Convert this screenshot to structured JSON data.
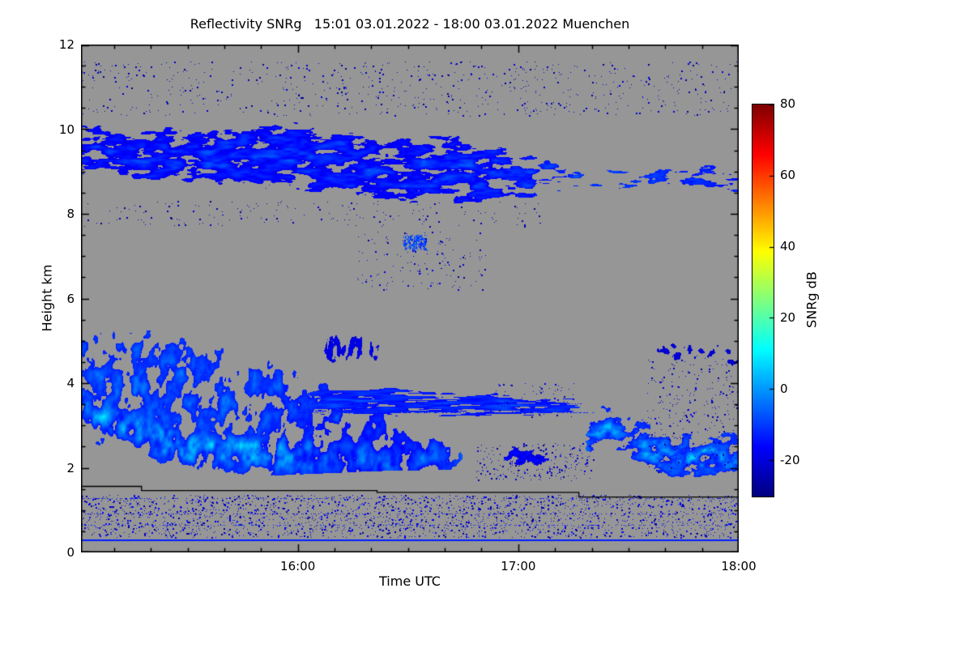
{
  "chart_data": {
    "type": "heatmap",
    "title": "Reflectivity SNRg   15:01 03.01.2022 - 18:00 03.01.2022 Muenchen",
    "xlabel": "Time UTC",
    "ylabel": "Height km",
    "ylim": [
      0,
      12
    ],
    "y_ticks": [
      "0",
      "2",
      "4",
      "6",
      "8",
      "10",
      "12"
    ],
    "x_axis": {
      "start": "15:01",
      "end": "18:00",
      "total_minutes": 179,
      "minor_step_min": 10,
      "first_minor_min": 9
    },
    "x_ticks": [
      {
        "label": "16:00",
        "frac": 0.32961
      },
      {
        "label": "17:00",
        "frac": 0.6648
      },
      {
        "label": "18:00",
        "frac": 1.0
      }
    ],
    "colorbar": {
      "label": "SNRg dB",
      "range": [
        -30,
        80
      ],
      "ticks": [
        80,
        60,
        40,
        20,
        0,
        -20
      ]
    },
    "colors": {
      "no_signal": "#969696",
      "frame": "#000000",
      "page": "#ffffff"
    },
    "layers": [
      {
        "name": "cirrus-layer-8-10km",
        "t0": 0,
        "t1": 1,
        "fl": 0,
        "fr": 0,
        "top": [
          [
            0,
            10.35
          ],
          [
            0.08,
            10.1
          ],
          [
            0.16,
            10.3
          ],
          [
            0.24,
            10.2
          ],
          [
            0.3,
            10.45
          ],
          [
            0.38,
            10.3
          ],
          [
            0.44,
            10.1
          ],
          [
            0.5,
            10.05
          ],
          [
            0.56,
            10.15
          ],
          [
            0.62,
            9.9
          ],
          [
            0.68,
            9.75
          ],
          [
            0.74,
            9.4
          ],
          [
            0.8,
            9.3
          ],
          [
            0.86,
            9.2
          ],
          [
            0.92,
            9.35
          ],
          [
            1,
            9.4
          ]
        ],
        "bottom": [
          [
            0,
            8.75
          ],
          [
            0.1,
            8.55
          ],
          [
            0.2,
            8.5
          ],
          [
            0.3,
            8.4
          ],
          [
            0.4,
            8.15
          ],
          [
            0.5,
            8.05
          ],
          [
            0.6,
            7.95
          ],
          [
            0.7,
            8.1
          ],
          [
            0.78,
            8.3
          ],
          [
            0.86,
            8.45
          ],
          [
            1,
            8.35
          ]
        ],
        "base": -27,
        "amp": 21,
        "cut": 0.33,
        "sx": 20,
        "sy": 6,
        "slant": 0.05,
        "cover_pts": [
          [
            0,
            0.95
          ],
          [
            0.5,
            1
          ],
          [
            0.62,
            0.85
          ],
          [
            0.7,
            0.7
          ],
          [
            0.78,
            0.5
          ],
          [
            0.85,
            0.55
          ],
          [
            0.93,
            0.65
          ],
          [
            1,
            0.7
          ]
        ]
      },
      {
        "name": "main-precipitating-cloud",
        "t0": 0,
        "t1": 0.62,
        "fl": 0,
        "fr": 0.06,
        "top": [
          [
            0,
            6.0
          ],
          [
            0.12,
            5.95
          ],
          [
            0.18,
            5.7
          ],
          [
            0.25,
            5.3
          ],
          [
            0.3,
            5.0
          ],
          [
            0.35,
            4.5
          ],
          [
            0.41,
            4.2
          ],
          [
            0.46,
            3.6
          ],
          [
            0.5,
            3.0
          ],
          [
            0.55,
            2.8
          ],
          [
            0.62,
            2.6
          ]
        ],
        "bottom": [
          [
            0,
            1.85
          ],
          [
            0.15,
            1.75
          ],
          [
            0.3,
            1.85
          ],
          [
            0.45,
            1.95
          ],
          [
            0.62,
            2.0
          ]
        ],
        "core": [
          [
            0,
            3.5
          ],
          [
            0.07,
            3.0
          ],
          [
            0.15,
            2.5
          ],
          [
            0.3,
            2.3
          ],
          [
            0.45,
            2.2
          ],
          [
            0.62,
            2.3
          ]
        ],
        "core_w": 0.55,
        "base": -26,
        "amp": 36,
        "cut": 0.27,
        "sx": 11,
        "sy": 17,
        "slant": 0.12,
        "cover_pts": [
          [
            0,
            1
          ],
          [
            0.4,
            1
          ],
          [
            0.5,
            0.85
          ],
          [
            0.56,
            0.65
          ],
          [
            0.62,
            0.45
          ]
        ],
        "amp_pts": [
          [
            0,
            1
          ],
          [
            0.25,
            1
          ],
          [
            0.4,
            0.8
          ],
          [
            0.62,
            0.6
          ]
        ]
      },
      {
        "name": "elevated-striated-band-3-4km",
        "t0": 0.3,
        "t1": 0.78,
        "fl": 0.07,
        "fr": 0.04,
        "top": [
          [
            0.3,
            4.05
          ],
          [
            0.5,
            4.0
          ],
          [
            0.78,
            3.7
          ]
        ],
        "bottom": [
          [
            0.3,
            3.15
          ],
          [
            0.6,
            3.1
          ],
          [
            0.78,
            3.2
          ]
        ],
        "base": -23,
        "amp": 17,
        "cut": 0.36,
        "sx": 34,
        "sy": 2.5,
        "slant": 0.01
      },
      {
        "name": "evening-cloud-17:20-18:00",
        "t0": 0.755,
        "t1": 1.0,
        "fl": 0.02,
        "fr": 0,
        "top": [
          [
            0.755,
            2.9
          ],
          [
            0.79,
            3.85
          ],
          [
            0.83,
            3.8
          ],
          [
            0.88,
            3.3
          ],
          [
            0.93,
            3.0
          ],
          [
            1,
            3.05
          ]
        ],
        "bottom": [
          [
            0.755,
            2.4
          ],
          [
            0.79,
            2.1
          ],
          [
            0.84,
            1.9
          ],
          [
            0.9,
            1.75
          ],
          [
            1,
            1.85
          ]
        ],
        "core": [
          [
            0.755,
            2.7
          ],
          [
            0.8,
            3.0
          ],
          [
            0.85,
            2.5
          ],
          [
            0.9,
            2.2
          ],
          [
            1,
            2.3
          ]
        ],
        "core_w": 0.5,
        "base": -26,
        "amp": 33,
        "cut": 0.3,
        "sx": 12,
        "sy": 10,
        "slant": 0.1
      },
      {
        "name": "weak-low-blobs-near-17:05",
        "t0": 0.615,
        "t1": 0.73,
        "fl": 0.03,
        "fr": 0.03,
        "top": [
          [
            0.615,
            2.6
          ],
          [
            0.66,
            2.7
          ],
          [
            0.73,
            2.5
          ]
        ],
        "bottom": [
          [
            0.615,
            1.95
          ],
          [
            0.73,
            1.95
          ]
        ],
        "base": -26,
        "amp": 12,
        "cut": 0.46,
        "sx": 9,
        "sy": 7,
        "slant": 0.05
      },
      {
        "name": "detached-virga-16:05-16:25",
        "t0": 0.355,
        "t1": 0.47,
        "fl": 0.02,
        "fr": 0.02,
        "top": [
          [
            0.355,
            5.2
          ],
          [
            0.4,
            5.35
          ],
          [
            0.47,
            5.1
          ]
        ],
        "bottom": [
          [
            0.355,
            4.4
          ],
          [
            0.42,
            4.3
          ],
          [
            0.47,
            4.5
          ]
        ],
        "base": -26,
        "amp": 10,
        "cut": 0.48,
        "sx": 5,
        "sy": 14,
        "slant": 0.2
      },
      {
        "name": "right-mid-level-debris",
        "t0": 0.86,
        "t1": 1.0,
        "fl": 0.02,
        "fr": 0,
        "top": [
          [
            0.86,
            5.0
          ],
          [
            0.93,
            5.2
          ],
          [
            1,
            4.9
          ]
        ],
        "bottom": [
          [
            0.86,
            4.4
          ],
          [
            1,
            4.3
          ]
        ],
        "base": -27,
        "amp": 8,
        "cut": 0.55,
        "sx": 7,
        "sy": 7,
        "slant": 0.05
      }
    ],
    "specks": [
      {
        "t0": 0,
        "t1": 1,
        "h0": 10.3,
        "h1": 11.6,
        "density": 0.012,
        "vmin": -28,
        "vmax": -20
      },
      {
        "t0": 0,
        "t1": 0.7,
        "h0": 7.7,
        "h1": 8.3,
        "density": 0.01,
        "vmin": -28,
        "vmax": -22
      },
      {
        "t0": 0.42,
        "t1": 0.62,
        "h0": 6.2,
        "h1": 7.6,
        "density": 0.012,
        "vmin": -27,
        "vmax": -18
      },
      {
        "t0": 0.49,
        "t1": 0.525,
        "h0": 7.15,
        "h1": 7.5,
        "density": 0.5,
        "vmin": -14,
        "vmax": -4
      },
      {
        "t0": 0,
        "t1": 1,
        "h0": 0.35,
        "h1": 1.35,
        "density": 0.05,
        "vmin": -28,
        "vmax": -14
      },
      {
        "t0": 0.6,
        "t1": 0.78,
        "h0": 1.7,
        "h1": 2.6,
        "density": 0.035,
        "vmin": -28,
        "vmax": -18
      },
      {
        "t0": 0.86,
        "t1": 1,
        "h0": 1.9,
        "h1": 4.6,
        "density": 0.02,
        "vmin": -28,
        "vmax": -18
      },
      {
        "t0": 0.63,
        "t1": 0.75,
        "h0": 3.2,
        "h1": 4.0,
        "density": 0.02,
        "vmin": -27,
        "vmax": -18
      }
    ],
    "dotted_rows": [
      {
        "h": 0.65,
        "t0": 0,
        "t1": 1,
        "density": 0.25,
        "vmin": -20,
        "vmax": -8
      },
      {
        "h": 0.92,
        "t0": 0,
        "t1": 1,
        "density": 0.18,
        "vmin": -24,
        "vmax": -12
      },
      {
        "h": 1.28,
        "t0": 0,
        "t1": 1,
        "density": 0.22,
        "vmin": -22,
        "vmax": -10
      },
      {
        "h": 3.32,
        "t0": 0.33,
        "t1": 0.78,
        "density": 0.5,
        "vmin": -18,
        "vmax": -8
      },
      {
        "h": 3.52,
        "t0": 0.35,
        "t1": 0.76,
        "density": 0.4,
        "vmin": -20,
        "vmax": -10
      }
    ],
    "blue_line": {
      "h": 0.31,
      "value": -13,
      "thickness": 2
    },
    "baseline": [
      [
        0,
        1.56
      ],
      [
        0.092,
        1.56
      ],
      [
        0.092,
        1.46
      ],
      [
        0.45,
        1.46
      ],
      [
        0.45,
        1.42
      ],
      [
        0.757,
        1.42
      ],
      [
        0.757,
        1.31
      ],
      [
        1,
        1.31
      ]
    ]
  }
}
